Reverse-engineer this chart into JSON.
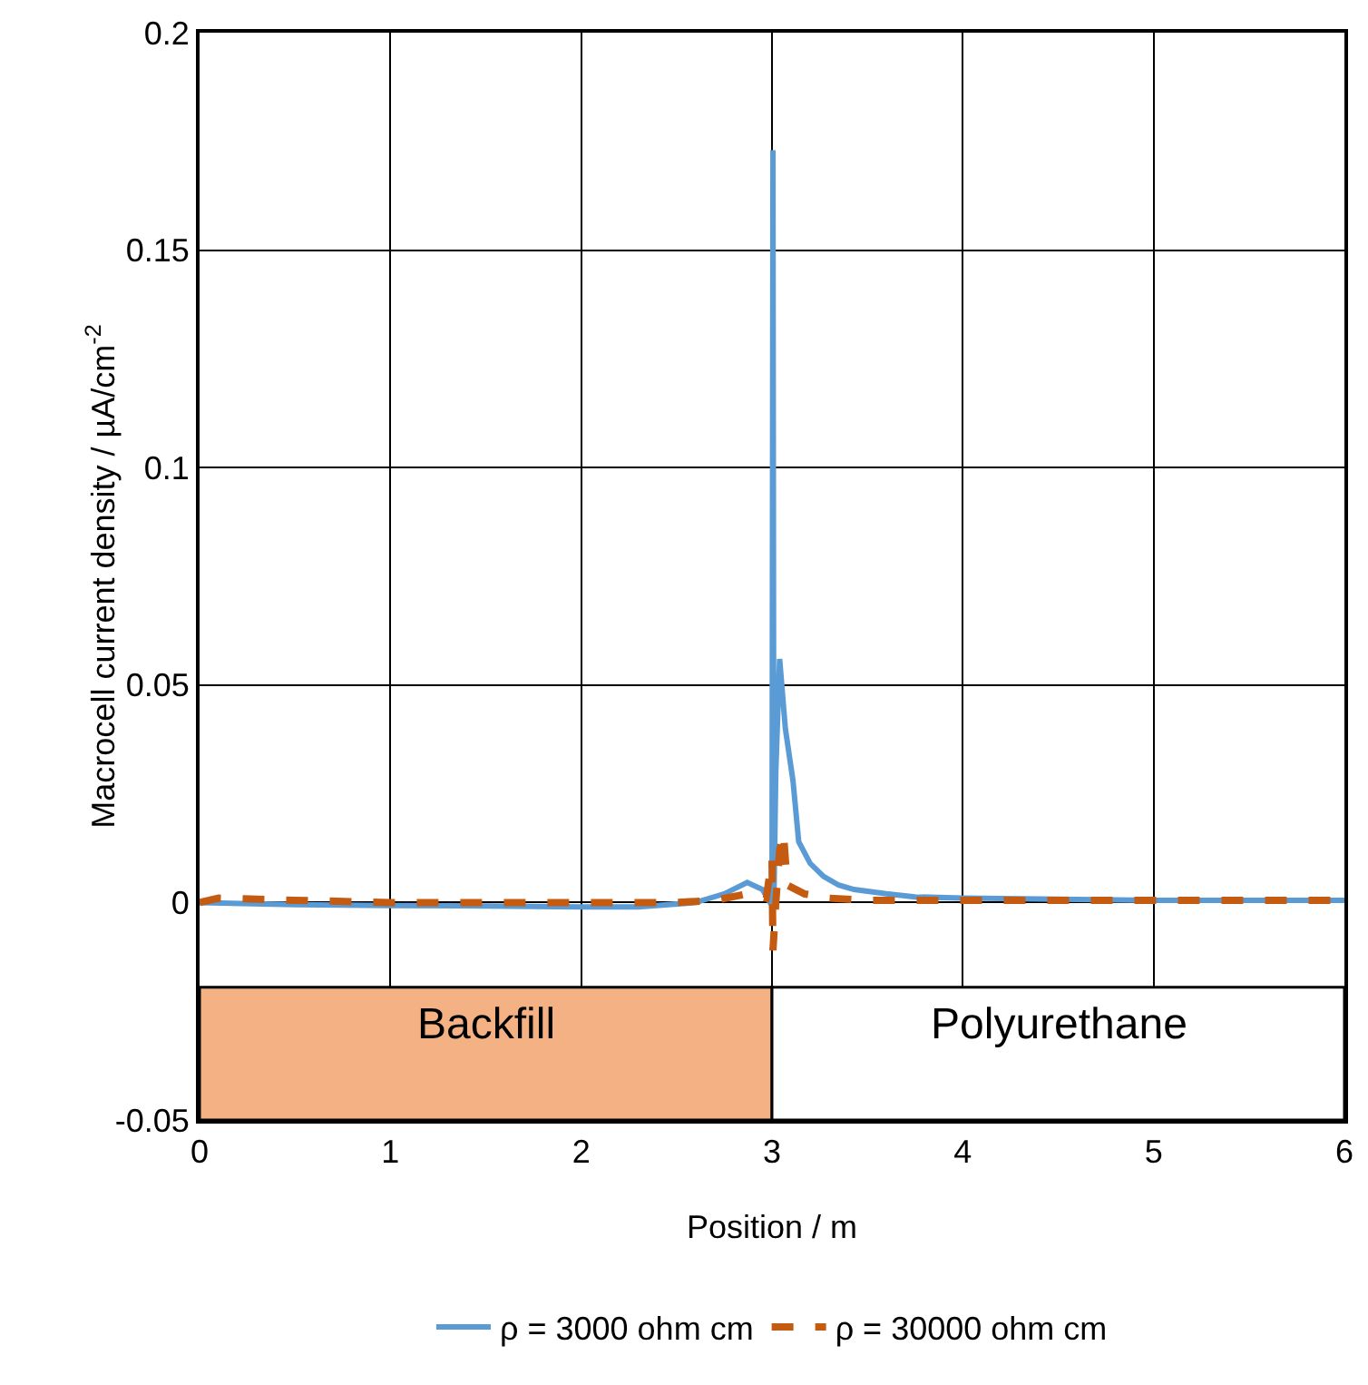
{
  "chart_data": {
    "type": "line",
    "xlabel": "Position / m",
    "ylabel": "Macrocell current density / µA/cm$^{-2}$",
    "xlim": [
      0,
      6
    ],
    "xticks": [
      0,
      1,
      2,
      3,
      4,
      5,
      6
    ],
    "ylim": [
      -0.05,
      0.2
    ],
    "yticks": [
      -0.05,
      0,
      0.05,
      0.1,
      0.15,
      0.2
    ],
    "grid": true,
    "legend": "bottom",
    "marker": "none",
    "bands": [
      {
        "axis": "x",
        "from": 0,
        "to": 3,
        "label": "Backfill",
        "color": "#f4b183"
      },
      {
        "axis": "x",
        "from": 3,
        "to": 6,
        "label": "Polyurethane",
        "color": "#ffffff"
      }
    ],
    "series": [
      {
        "name": "ρ = 3000 ohm cm",
        "color": "#5b9bd5",
        "line_style": "solid",
        "x": [
          0,
          0.5,
          1,
          1.5,
          2,
          2.3,
          2.6,
          2.75,
          2.87,
          2.95,
          2.99,
          3.0,
          3.005,
          3.01,
          3.02,
          3.04,
          3.07,
          3.11,
          3.14,
          3.2,
          3.27,
          3.35,
          3.43,
          3.6,
          3.75,
          4,
          5,
          6
        ],
        "values": [
          0,
          -0.0005,
          -0.0007,
          -0.0008,
          -0.001,
          -0.001,
          0,
          0.002,
          0.0046,
          0.003,
          0,
          0,
          0.173,
          0,
          0.03,
          0.056,
          0.04,
          0.028,
          0.014,
          0.009,
          0.006,
          0.004,
          0.003,
          0.002,
          0.0013,
          0.001,
          0.0005,
          0.0005
        ]
      },
      {
        "name": "ρ = 30000 ohm cm",
        "color": "#c55a11",
        "line_style": "dashed",
        "x": [
          0,
          0.1,
          0.5,
          1,
          1.5,
          2,
          2.5,
          2.7,
          2.87,
          2.97,
          3.0,
          3.005,
          3.02,
          3.04,
          3.06,
          3.08,
          3.17,
          3.3,
          3.5,
          4,
          5,
          6
        ],
        "values": [
          0,
          0.001,
          0.0005,
          0,
          0,
          0,
          0,
          0.0005,
          0.002,
          0.001,
          0.01,
          -0.011,
          0,
          0.012,
          0.016,
          0.004,
          0.002,
          0.001,
          0.0005,
          0.0005,
          0.0005,
          0.0005
        ]
      }
    ]
  }
}
